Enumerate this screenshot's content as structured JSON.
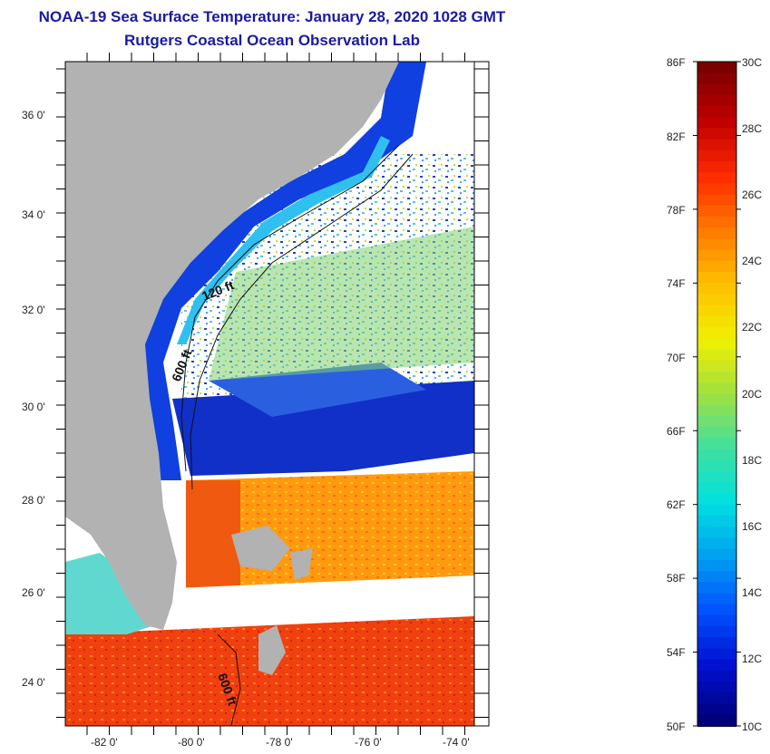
{
  "title": "NOAA-19 Sea Surface Temperature:  January 28, 2020 1028 GMT",
  "subtitle": "Rutgers Coastal Ocean Observation Lab",
  "axes": {
    "lat_labels": [
      "36 0'",
      "34 0'",
      "32 0'",
      "30 0'",
      "28 0'",
      "26 0'",
      "24 0'"
    ],
    "lon_labels": [
      "-82 0'",
      "-80 0'",
      "-78 0'",
      "-76 0'",
      "-74 0'"
    ]
  },
  "contours": {
    "shelf_120": "120 ft",
    "shelf_600": "600 ft",
    "bahamas_600": "600 ft"
  },
  "colorbar": {
    "fahrenheit": [
      "86F",
      "82F",
      "78F",
      "74F",
      "70F",
      "66F",
      "62F",
      "58F",
      "54F",
      "50F"
    ],
    "celsius": [
      "30C",
      "28C",
      "26C",
      "24C",
      "22C",
      "20C",
      "18C",
      "16C",
      "14C",
      "12C",
      "10C"
    ],
    "colors": [
      "#7a0000",
      "#c00000",
      "#ff2a00",
      "#ff7a00",
      "#ffc000",
      "#f0f000",
      "#a0e040",
      "#40e0a0",
      "#00e0e0",
      "#00a0f0",
      "#0050ff",
      "#0010d0",
      "#00007a"
    ]
  },
  "colors": {
    "land": "#b2b2b2",
    "frame": "#000000",
    "title": "#1a1aa6"
  }
}
